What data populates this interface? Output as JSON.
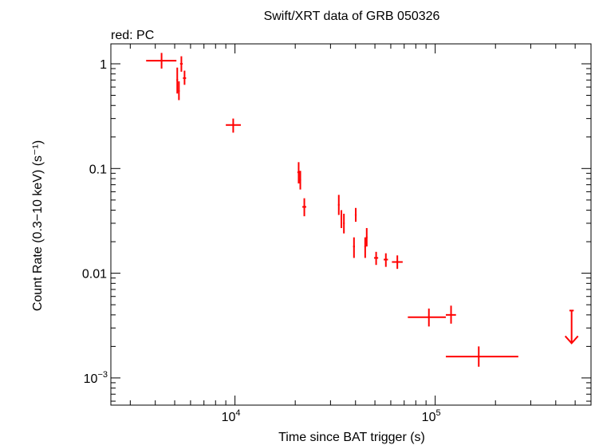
{
  "chart_data": {
    "type": "scatter",
    "title": "Swift/XRT data of GRB 050326",
    "subtitle": "red: PC",
    "xlabel": "Time since BAT trigger (s)",
    "ylabel": "Count Rate (0.3−10 keV) (s⁻¹)",
    "x_scale": "log",
    "y_scale": "log",
    "xlim": [
      2400,
      600000
    ],
    "ylim": [
      0.00055,
      1.55
    ],
    "x_tick_labels": [
      {
        "value": 10000,
        "base": "10",
        "exp": "4"
      },
      {
        "value": 100000,
        "base": "10",
        "exp": "5"
      }
    ],
    "y_tick_labels": [
      {
        "value": 1,
        "label": "1"
      },
      {
        "value": 0.1,
        "label": "0.1"
      },
      {
        "value": 0.01,
        "label": "0.01"
      },
      {
        "value": 0.001,
        "base": "10",
        "exp": "−3"
      }
    ],
    "series": [
      {
        "color": "#ff0000",
        "points": [
          {
            "x": 4300,
            "xlo": 3600,
            "xhi": 5100,
            "y": 1.07,
            "ylo": 0.9,
            "yhi": 1.27
          },
          {
            "x": 5150,
            "xlo": 5100,
            "xhi": 5200,
            "y": 0.7,
            "ylo": 0.52,
            "yhi": 0.92
          },
          {
            "x": 5250,
            "xlo": 5200,
            "xhi": 5300,
            "y": 0.55,
            "ylo": 0.45,
            "yhi": 0.68
          },
          {
            "x": 5400,
            "xlo": 5320,
            "xhi": 5480,
            "y": 1.0,
            "ylo": 0.84,
            "yhi": 1.18
          },
          {
            "x": 5600,
            "xlo": 5500,
            "xhi": 5700,
            "y": 0.73,
            "ylo": 0.63,
            "yhi": 0.86
          },
          {
            "x": 9800,
            "xlo": 9000,
            "xhi": 10700,
            "y": 0.26,
            "ylo": 0.22,
            "yhi": 0.3
          },
          {
            "x": 20800,
            "xlo": 20500,
            "xhi": 21100,
            "y": 0.092,
            "ylo": 0.072,
            "yhi": 0.115
          },
          {
            "x": 21200,
            "xlo": 21000,
            "xhi": 21400,
            "y": 0.078,
            "ylo": 0.063,
            "yhi": 0.095
          },
          {
            "x": 22200,
            "xlo": 21700,
            "xhi": 22700,
            "y": 0.043,
            "ylo": 0.035,
            "yhi": 0.052
          },
          {
            "x": 33000,
            "xlo": 32700,
            "xhi": 33300,
            "y": 0.045,
            "ylo": 0.036,
            "yhi": 0.056
          },
          {
            "x": 34000,
            "xlo": 33700,
            "xhi": 34300,
            "y": 0.033,
            "ylo": 0.027,
            "yhi": 0.04
          },
          {
            "x": 35000,
            "xlo": 34700,
            "xhi": 35300,
            "y": 0.03,
            "ylo": 0.024,
            "yhi": 0.037
          },
          {
            "x": 39300,
            "xlo": 38900,
            "xhi": 39700,
            "y": 0.018,
            "ylo": 0.014,
            "yhi": 0.022
          },
          {
            "x": 40100,
            "xlo": 39700,
            "xhi": 40500,
            "y": 0.036,
            "ylo": 0.031,
            "yhi": 0.042
          },
          {
            "x": 44700,
            "xlo": 44300,
            "xhi": 45100,
            "y": 0.018,
            "ylo": 0.014,
            "yhi": 0.022
          },
          {
            "x": 45500,
            "xlo": 45100,
            "xhi": 45900,
            "y": 0.022,
            "ylo": 0.018,
            "yhi": 0.027
          },
          {
            "x": 50700,
            "xlo": 49500,
            "xhi": 51900,
            "y": 0.014,
            "ylo": 0.012,
            "yhi": 0.016
          },
          {
            "x": 56700,
            "xlo": 55300,
            "xhi": 58100,
            "y": 0.0135,
            "ylo": 0.0115,
            "yhi": 0.0155
          },
          {
            "x": 64700,
            "xlo": 60800,
            "xhi": 68800,
            "y": 0.0128,
            "ylo": 0.011,
            "yhi": 0.0148
          },
          {
            "x": 93000,
            "xlo": 73000,
            "xhi": 113000,
            "y": 0.0038,
            "ylo": 0.0031,
            "yhi": 0.0046
          },
          {
            "x": 120000,
            "xlo": 113000,
            "xhi": 127000,
            "y": 0.004,
            "ylo": 0.0033,
            "yhi": 0.0049
          },
          {
            "x": 165000,
            "xlo": 113000,
            "xhi": 260000,
            "y": 0.0016,
            "ylo": 0.00128,
            "yhi": 0.002
          }
        ],
        "upper_limits": [
          {
            "x": 480000,
            "xlo": 468000,
            "xhi": 492000,
            "y": 0.0044
          }
        ]
      }
    ],
    "grid": false,
    "legend": "none"
  }
}
